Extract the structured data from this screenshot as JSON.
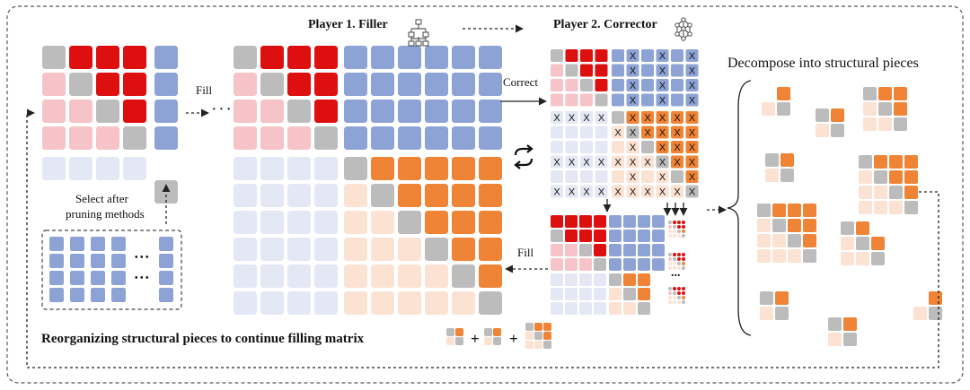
{
  "labels": {
    "player1": "Player 1. Filler",
    "player2": "Player 2. Corrector",
    "fill_left": "Fill",
    "fill_bottom": "Fill",
    "correct": "Correct",
    "select_line1": "Select after",
    "select_line2": "pruning methods",
    "decompose": "Decompose into structural pieces",
    "reorganize": "Reorganizing structural pieces to continue filling matrix",
    "plus1": "+",
    "plus2": "+",
    "ellipsis_dots": "...",
    "ellipsis_left": "· · ·",
    "ellipsis_pool1": "• • •",
    "ellipsis_pool2": "• • •",
    "ellipsis_right": "• • •",
    "x_mark": "X"
  },
  "icons": {
    "filler": "hierarchy-tree-icon",
    "corrector": "network-graph-icon",
    "cycle": "cycle-arrows-icon"
  },
  "colors": {
    "red": "#dd0f0f",
    "pink": "#f5c3c8",
    "gray": "#bcbcbc",
    "blue": "#8ea3d5",
    "light": "#e4e8f4",
    "orange": "#ef8436",
    "peach": "#fbe2d2",
    "dark": "#333333"
  }
}
